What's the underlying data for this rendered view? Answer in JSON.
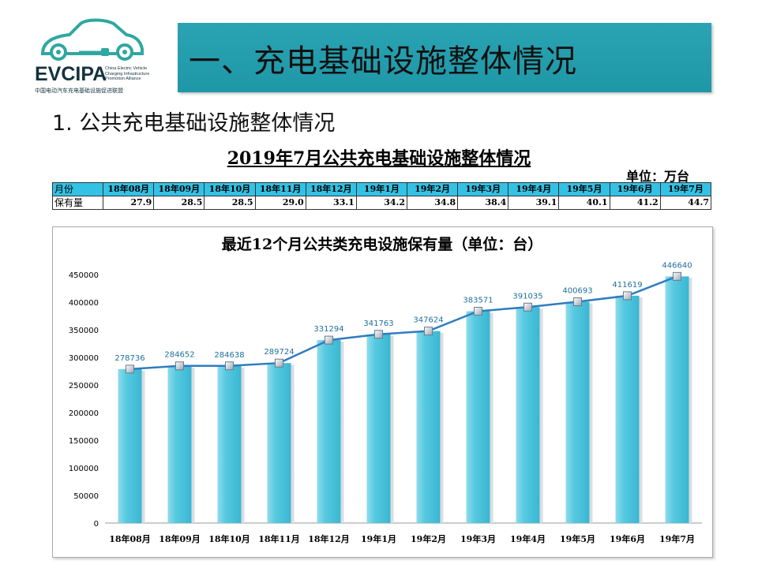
{
  "logo": {
    "name": "EVCIPA",
    "sub_lines": [
      "China Electric Vehicle",
      "Charging Infrastructure",
      "Promotion Alliance"
    ],
    "cn": "中国电动汽车充电基础设施促进联盟"
  },
  "banner_title": "一、充电基础设施整体情况",
  "section_title": "1. 公共充电基础设施整体情况",
  "table_title": "2019年7月公共充电基础设施整体情况",
  "unit_note": "单位：万台",
  "table": {
    "row1_label": "月份",
    "row2_label": "保有量",
    "months": [
      "18年08月",
      "18年09月",
      "18年10月",
      "18年11月",
      "18年12月",
      "19年1月",
      "19年2月",
      "19年3月",
      "19年4月",
      "19年5月",
      "19年6月",
      "19年7月"
    ],
    "values": [
      "27.9",
      "28.5",
      "28.5",
      "29.0",
      "33.1",
      "34.2",
      "34.8",
      "38.4",
      "39.1",
      "40.1",
      "41.2",
      "44.7"
    ]
  },
  "colors": {
    "banner": "#24a0b0",
    "bar": "#56c9e0",
    "line": "#2f7cc0",
    "header_cell": "#33c2e6"
  },
  "chart_data": {
    "type": "bar",
    "title": "最近12个月公共类充电设施保有量（单位：台）",
    "categories": [
      "18年08月",
      "18年09月",
      "18年10月",
      "18年11月",
      "18年12月",
      "19年1月",
      "19年2月",
      "19年3月",
      "19年4月",
      "19年5月",
      "19年6月",
      "19年7月"
    ],
    "values": [
      278736,
      284652,
      284638,
      289724,
      331294,
      341763,
      347624,
      383571,
      391035,
      400693,
      411619,
      446640
    ],
    "overlay": "line with square markers on same values",
    "ylim": [
      0,
      450000
    ],
    "yticks": [
      0,
      50000,
      100000,
      150000,
      200000,
      250000,
      300000,
      350000,
      400000,
      450000
    ],
    "xlabel": "",
    "ylabel": "",
    "grid": false
  }
}
